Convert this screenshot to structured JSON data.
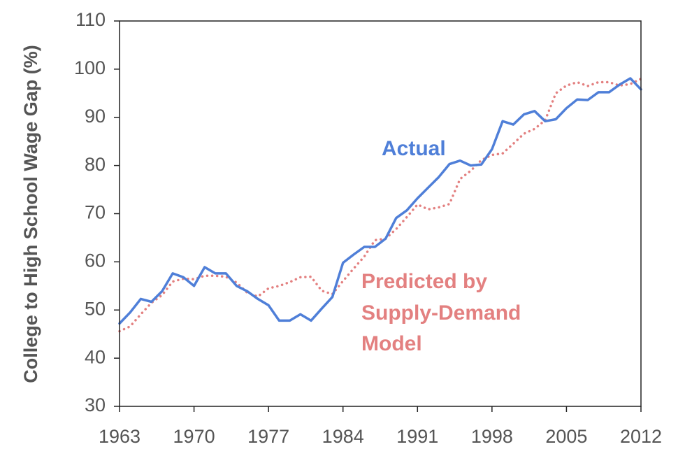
{
  "chart_data": {
    "type": "line",
    "title": "",
    "xlabel": "",
    "ylabel": "College to High School Wage Gap (%)",
    "xlim": [
      1963,
      2012
    ],
    "ylim": [
      30,
      110
    ],
    "x_ticks": [
      1963,
      1970,
      1977,
      1984,
      1991,
      1998,
      2005,
      2012
    ],
    "y_ticks": [
      30,
      40,
      50,
      60,
      70,
      80,
      90,
      100,
      110
    ],
    "grid": false,
    "annotations": {
      "actual": "Actual",
      "predicted": [
        "Predicted by",
        "Supply-Demand",
        "Model"
      ]
    },
    "series": [
      {
        "name": "Actual",
        "color": "#4f7fd8",
        "style": "solid",
        "x": [
          1963,
          1964,
          1965,
          1966,
          1967,
          1968,
          1969,
          1970,
          1971,
          1972,
          1973,
          1974,
          1975,
          1976,
          1977,
          1978,
          1979,
          1980,
          1981,
          1982,
          1983,
          1984,
          1985,
          1986,
          1987,
          1988,
          1989,
          1990,
          1991,
          1992,
          1993,
          1994,
          1995,
          1996,
          1997,
          1998,
          1999,
          2000,
          2001,
          2002,
          2003,
          2004,
          2005,
          2006,
          2007,
          2008,
          2009,
          2010,
          2011,
          2012
        ],
        "values": [
          47.2,
          49.5,
          52.3,
          51.7,
          53.9,
          57.6,
          56.8,
          55.0,
          58.9,
          57.6,
          57.6,
          55.0,
          53.9,
          52.3,
          51.0,
          47.8,
          47.8,
          49.1,
          47.8,
          50.3,
          52.7,
          59.8,
          61.5,
          63.1,
          63.1,
          64.8,
          69.1,
          70.7,
          73.2,
          75.4,
          77.6,
          80.3,
          81.0,
          80.0,
          80.2,
          83.4,
          89.2,
          88.5,
          90.6,
          91.3,
          89.2,
          89.6,
          91.9,
          93.7,
          93.6,
          95.2,
          95.2,
          96.8,
          98.1,
          95.8
        ]
      },
      {
        "name": "Predicted by Supply-Demand Model",
        "color": "#e38080",
        "style": "dotted",
        "x": [
          1963,
          1964,
          1965,
          1966,
          1967,
          1968,
          1969,
          1970,
          1971,
          1972,
          1973,
          1974,
          1975,
          1976,
          1977,
          1978,
          1979,
          1980,
          1981,
          1982,
          1983,
          1984,
          1985,
          1986,
          1987,
          1988,
          1989,
          1990,
          1991,
          1992,
          1993,
          1994,
          1995,
          1996,
          1997,
          1998,
          1999,
          2000,
          2001,
          2002,
          2003,
          2004,
          2005,
          2006,
          2007,
          2008,
          2009,
          2010,
          2011,
          2012
        ],
        "values": [
          45.6,
          46.6,
          49.1,
          51.5,
          53.1,
          55.9,
          56.5,
          56.4,
          57.1,
          57.1,
          56.9,
          55.7,
          53.6,
          52.8,
          54.5,
          55.0,
          55.8,
          56.8,
          56.9,
          54.0,
          53.3,
          56.0,
          58.6,
          61.1,
          64.5,
          64.8,
          66.8,
          69.3,
          71.9,
          70.9,
          71.3,
          72.0,
          77.2,
          78.9,
          81.1,
          82.2,
          82.5,
          84.5,
          86.6,
          87.6,
          89.4,
          95.0,
          96.6,
          97.3,
          96.5,
          97.3,
          97.3,
          96.6,
          96.9,
          98.0
        ]
      }
    ]
  }
}
